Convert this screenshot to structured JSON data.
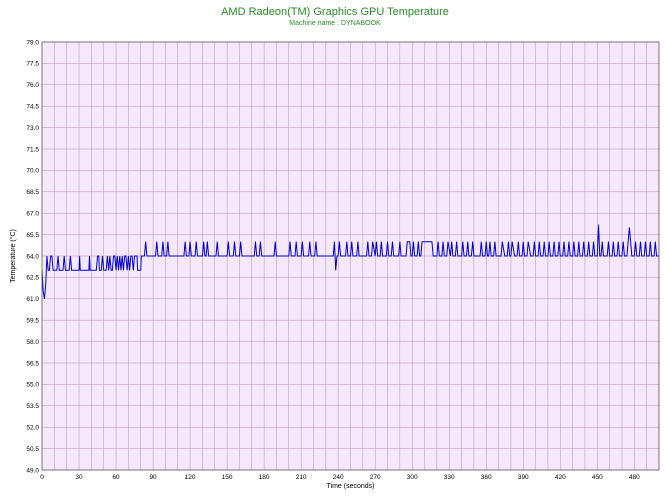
{
  "chart_data": {
    "type": "line",
    "title": "AMD Radeon(TM) Graphics GPU Temperature",
    "subtitle": "Machine name : DYNABOOK",
    "xlabel": "Time (seconds)",
    "ylabel": "Temperature (°C)",
    "xlim": [
      0,
      500
    ],
    "ylim": [
      49.0,
      79.0
    ],
    "x_ticks": [
      0,
      30,
      60,
      90,
      120,
      150,
      180,
      210,
      240,
      270,
      300,
      330,
      360,
      390,
      420,
      450,
      480
    ],
    "y_ticks": [
      "49.0",
      "50.5",
      "52.0",
      "53.5",
      "55.0",
      "56.5",
      "58.0",
      "59.5",
      "61.0",
      "62.5",
      "64.0",
      "65.5",
      "67.0",
      "68.5",
      "70.0",
      "71.5",
      "73.0",
      "74.5",
      "76.0",
      "77.5",
      "79.0"
    ],
    "grid": true,
    "colors": {
      "line": "#0000cc",
      "plot_bg": "#f6e8fb",
      "grid": "#b98ab9",
      "title": "#2a8a2a"
    },
    "series": [
      {
        "points": [
          [
            0,
            63
          ],
          [
            1,
            61.5
          ],
          [
            2,
            61
          ],
          [
            3,
            62
          ],
          [
            4,
            64
          ],
          [
            5,
            63
          ],
          [
            6,
            63
          ],
          [
            7,
            64
          ],
          [
            8,
            64
          ],
          [
            9,
            63
          ],
          [
            12,
            63
          ],
          [
            13,
            64
          ],
          [
            14,
            63
          ],
          [
            17,
            63
          ],
          [
            18,
            64
          ],
          [
            19,
            63
          ],
          [
            22,
            63
          ],
          [
            23,
            64
          ],
          [
            24,
            63
          ],
          [
            30,
            63
          ],
          [
            30.5,
            64
          ],
          [
            31,
            63
          ],
          [
            38,
            63
          ],
          [
            38.5,
            64
          ],
          [
            39,
            63
          ],
          [
            44,
            63
          ],
          [
            45,
            64
          ],
          [
            46,
            64
          ],
          [
            46.5,
            63
          ],
          [
            48,
            63
          ],
          [
            49,
            64
          ],
          [
            50,
            63
          ],
          [
            52,
            63
          ],
          [
            53,
            64
          ],
          [
            54,
            63
          ],
          [
            55,
            64
          ],
          [
            56,
            63
          ],
          [
            57,
            63
          ],
          [
            58,
            64
          ],
          [
            59,
            64
          ],
          [
            60,
            63
          ],
          [
            61,
            64
          ],
          [
            62,
            63
          ],
          [
            63,
            64
          ],
          [
            64,
            63
          ],
          [
            65,
            64
          ],
          [
            66,
            63
          ],
          [
            67,
            64
          ],
          [
            68,
            64
          ],
          [
            69,
            63
          ],
          [
            70,
            64
          ],
          [
            71,
            63
          ],
          [
            72,
            64
          ],
          [
            73,
            64
          ],
          [
            74,
            63
          ],
          [
            75,
            64
          ],
          [
            77,
            64
          ],
          [
            77.5,
            63
          ],
          [
            80,
            63
          ],
          [
            80.5,
            64
          ],
          [
            83,
            64
          ],
          [
            84,
            65
          ],
          [
            85,
            64
          ],
          [
            92,
            64
          ],
          [
            93,
            65
          ],
          [
            94,
            64
          ],
          [
            97,
            64
          ],
          [
            98,
            65
          ],
          [
            99,
            64
          ],
          [
            101,
            64
          ],
          [
            102,
            65
          ],
          [
            103,
            64
          ],
          [
            115,
            64
          ],
          [
            116,
            65
          ],
          [
            117,
            64
          ],
          [
            119,
            64
          ],
          [
            120,
            65
          ],
          [
            121,
            64
          ],
          [
            124,
            64
          ],
          [
            125,
            65
          ],
          [
            126,
            64
          ],
          [
            130,
            64
          ],
          [
            131,
            65
          ],
          [
            132,
            64
          ],
          [
            133,
            64
          ],
          [
            134,
            65
          ],
          [
            135,
            64
          ],
          [
            141,
            64
          ],
          [
            142,
            65
          ],
          [
            143,
            64
          ],
          [
            150,
            64
          ],
          [
            151,
            65
          ],
          [
            152,
            64
          ],
          [
            155,
            64
          ],
          [
            156,
            65
          ],
          [
            157,
            64
          ],
          [
            160,
            64
          ],
          [
            161,
            65
          ],
          [
            162,
            64
          ],
          [
            172,
            64
          ],
          [
            173,
            65
          ],
          [
            174,
            64
          ],
          [
            176,
            64
          ],
          [
            177,
            65
          ],
          [
            178,
            64
          ],
          [
            188,
            64
          ],
          [
            189,
            65
          ],
          [
            190,
            64
          ],
          [
            200,
            64
          ],
          [
            201,
            65
          ],
          [
            202,
            64
          ],
          [
            205,
            64
          ],
          [
            206,
            65
          ],
          [
            207,
            64
          ],
          [
            210,
            64
          ],
          [
            211,
            65
          ],
          [
            212,
            64
          ],
          [
            216,
            64
          ],
          [
            217,
            65
          ],
          [
            218,
            64
          ],
          [
            221,
            64
          ],
          [
            222,
            65
          ],
          [
            223,
            64
          ],
          [
            236,
            64
          ],
          [
            237,
            65
          ],
          [
            238,
            63
          ],
          [
            239,
            64
          ],
          [
            240,
            64
          ],
          [
            241,
            65
          ],
          [
            242,
            64
          ],
          [
            246,
            64
          ],
          [
            247,
            65
          ],
          [
            248,
            64
          ],
          [
            250,
            64
          ],
          [
            251,
            65
          ],
          [
            252,
            64
          ],
          [
            255,
            64
          ],
          [
            256,
            65
          ],
          [
            257,
            64
          ],
          [
            263,
            64
          ],
          [
            264,
            65
          ],
          [
            265,
            64
          ],
          [
            267,
            64
          ],
          [
            268,
            65
          ],
          [
            270,
            64
          ],
          [
            271,
            65
          ],
          [
            272,
            64
          ],
          [
            274,
            64
          ],
          [
            275,
            65
          ],
          [
            276,
            64
          ],
          [
            279,
            64
          ],
          [
            280,
            65
          ],
          [
            281,
            64
          ],
          [
            283,
            64
          ],
          [
            284,
            65
          ],
          [
            285,
            64
          ],
          [
            289,
            64
          ],
          [
            290,
            65
          ],
          [
            291,
            64
          ],
          [
            295,
            64
          ],
          [
            296,
            65
          ],
          [
            298,
            65
          ],
          [
            299,
            64
          ],
          [
            300,
            64
          ],
          [
            301,
            65
          ],
          [
            302,
            64
          ],
          [
            304,
            64
          ],
          [
            305,
            65
          ],
          [
            306,
            64
          ],
          [
            307,
            64
          ],
          [
            308,
            65
          ],
          [
            316,
            65
          ],
          [
            317,
            64
          ],
          [
            320,
            64
          ],
          [
            321,
            65
          ],
          [
            322,
            64
          ],
          [
            324,
            64
          ],
          [
            325,
            65
          ],
          [
            326,
            64
          ],
          [
            328,
            64
          ],
          [
            329,
            65
          ],
          [
            331,
            64
          ],
          [
            332,
            65
          ],
          [
            333,
            64
          ],
          [
            335,
            64
          ],
          [
            336,
            65
          ],
          [
            337,
            64
          ],
          [
            340,
            64
          ],
          [
            341,
            65
          ],
          [
            342,
            64
          ],
          [
            344,
            64
          ],
          [
            345,
            65
          ],
          [
            346,
            64
          ],
          [
            348,
            64
          ],
          [
            349,
            65
          ],
          [
            350,
            64
          ],
          [
            355,
            64
          ],
          [
            356,
            65
          ],
          [
            357,
            64
          ],
          [
            359,
            64
          ],
          [
            360,
            65
          ],
          [
            361,
            64
          ],
          [
            362,
            64
          ],
          [
            363,
            65
          ],
          [
            364,
            64
          ],
          [
            366,
            64
          ],
          [
            367,
            65
          ],
          [
            368,
            64
          ],
          [
            372,
            64
          ],
          [
            373,
            65
          ],
          [
            375,
            64
          ],
          [
            377,
            64
          ],
          [
            378,
            65
          ],
          [
            379,
            64
          ],
          [
            380,
            64
          ],
          [
            381,
            65
          ],
          [
            383,
            64
          ],
          [
            385,
            64
          ],
          [
            386,
            65
          ],
          [
            387,
            64
          ],
          [
            389,
            64
          ],
          [
            390,
            65
          ],
          [
            391,
            64
          ],
          [
            393,
            64
          ],
          [
            394,
            65
          ],
          [
            396,
            64
          ],
          [
            398,
            64
          ],
          [
            399,
            65
          ],
          [
            400,
            64
          ],
          [
            402,
            64
          ],
          [
            403,
            65
          ],
          [
            404,
            64
          ],
          [
            406,
            64
          ],
          [
            407,
            65
          ],
          [
            408,
            64
          ],
          [
            410,
            64
          ],
          [
            411,
            65
          ],
          [
            412,
            64
          ],
          [
            414,
            64
          ],
          [
            415,
            65
          ],
          [
            416,
            64
          ],
          [
            418,
            64
          ],
          [
            419,
            65
          ],
          [
            420,
            64
          ],
          [
            422,
            64
          ],
          [
            423,
            65
          ],
          [
            424,
            64
          ],
          [
            426,
            64
          ],
          [
            427,
            65
          ],
          [
            428,
            64
          ],
          [
            430,
            64
          ],
          [
            431,
            65
          ],
          [
            432,
            64
          ],
          [
            434,
            64
          ],
          [
            435,
            65
          ],
          [
            436,
            64
          ],
          [
            438,
            64
          ],
          [
            439,
            65
          ],
          [
            440,
            64
          ],
          [
            442,
            64
          ],
          [
            443,
            65
          ],
          [
            444,
            64
          ],
          [
            446,
            64
          ],
          [
            447,
            65
          ],
          [
            448,
            64
          ],
          [
            450,
            64
          ],
          [
            451,
            66.2
          ],
          [
            452,
            64
          ],
          [
            453,
            64
          ],
          [
            454,
            65
          ],
          [
            455,
            64
          ],
          [
            458,
            64
          ],
          [
            459,
            65
          ],
          [
            460,
            64
          ],
          [
            462,
            64
          ],
          [
            463,
            65
          ],
          [
            464,
            64
          ],
          [
            466,
            64
          ],
          [
            467,
            65
          ],
          [
            468,
            64
          ],
          [
            470,
            64
          ],
          [
            471,
            65
          ],
          [
            472,
            64
          ],
          [
            474,
            64
          ],
          [
            475,
            65
          ],
          [
            476,
            66
          ],
          [
            477,
            65
          ],
          [
            478,
            64
          ],
          [
            480,
            64
          ],
          [
            481,
            65
          ],
          [
            482,
            64
          ],
          [
            484,
            64
          ],
          [
            485,
            65
          ],
          [
            486,
            64
          ],
          [
            488,
            64
          ],
          [
            489,
            65
          ],
          [
            490,
            64
          ],
          [
            492,
            64
          ],
          [
            493,
            65
          ],
          [
            494,
            64
          ],
          [
            496,
            64
          ],
          [
            497,
            65
          ],
          [
            498,
            64
          ],
          [
            500,
            64
          ]
        ]
      }
    ]
  }
}
